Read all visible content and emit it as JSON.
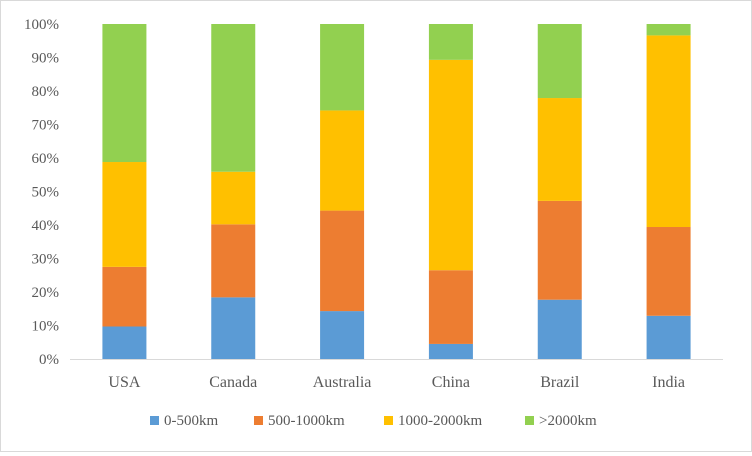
{
  "chart_data": {
    "type": "bar",
    "stacked": true,
    "percent": true,
    "categories": [
      "USA",
      "Canada",
      "Australia",
      "China",
      "Brazil",
      "India"
    ],
    "series": [
      {
        "name": "0-500km",
        "color": "#5B9BD5",
        "values": [
          9.7,
          18.4,
          14.3,
          4.5,
          17.7,
          12.9
        ]
      },
      {
        "name": "500-1000km",
        "color": "#ED7D31",
        "values": [
          17.8,
          21.8,
          30.0,
          22.0,
          29.5,
          26.5
        ]
      },
      {
        "name": "1000-2000km",
        "color": "#FFC000",
        "values": [
          31.3,
          15.7,
          29.9,
          62.8,
          30.7,
          57.2
        ]
      },
      {
        "name": ">2000km",
        "color": "#92D050",
        "values": [
          41.2,
          44.1,
          25.8,
          10.7,
          22.1,
          3.4
        ]
      }
    ],
    "ylim": [
      0,
      100
    ],
    "yticks": [
      "0%",
      "10%",
      "20%",
      "30%",
      "40%",
      "50%",
      "60%",
      "70%",
      "80%",
      "90%",
      "100%"
    ],
    "grid": false,
    "legend_position": "bottom"
  }
}
